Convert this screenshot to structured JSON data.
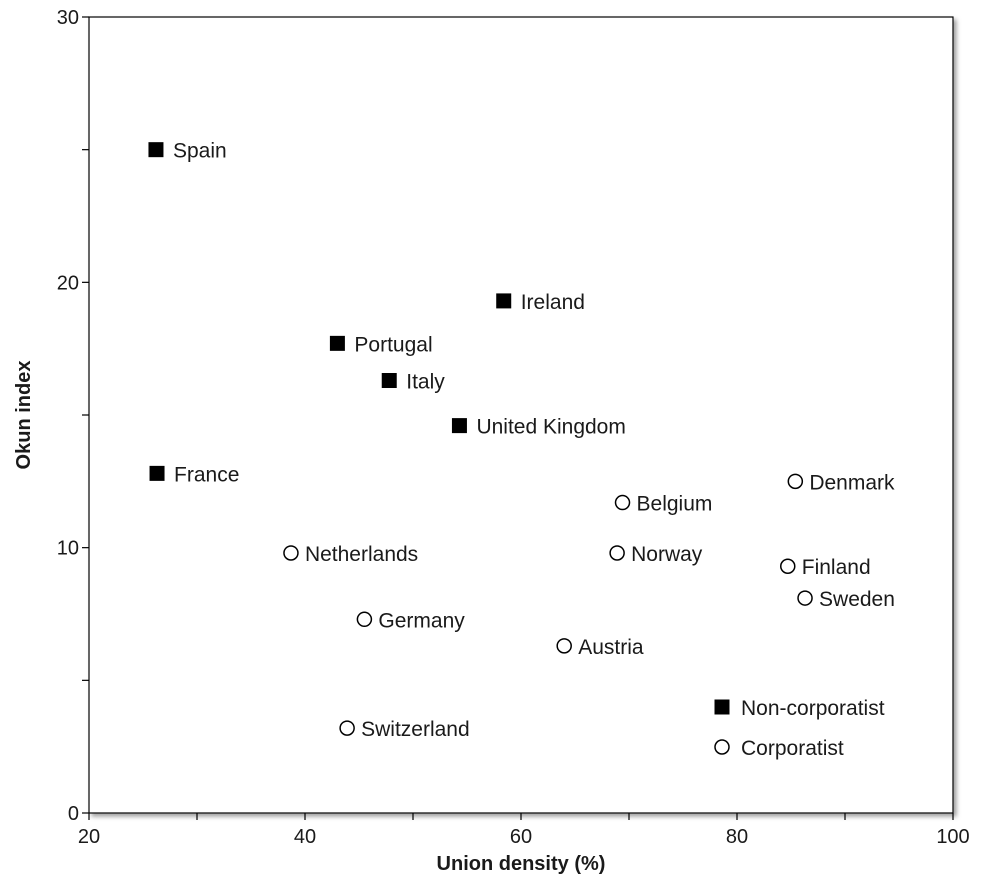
{
  "chart_data": {
    "type": "scatter",
    "title": "",
    "xlabel": "Union density (%)",
    "ylabel": "Okun index",
    "xlim": [
      20,
      100
    ],
    "ylim": [
      0,
      30
    ],
    "x_ticks": [
      20,
      30,
      40,
      50,
      60,
      70,
      80,
      90,
      100
    ],
    "x_tick_labels": [
      "20",
      "",
      "40",
      "",
      "60",
      "",
      "80",
      "",
      "100"
    ],
    "y_ticks": [
      0,
      5,
      10,
      15,
      20,
      25,
      30
    ],
    "y_tick_labels": [
      "0",
      "",
      "10",
      "",
      "20",
      "",
      "30"
    ],
    "grid": false,
    "legend_position": "bottom-right",
    "series": [
      {
        "name": "Non-corporatist",
        "marker": "filled-square",
        "color": "#000000",
        "points": [
          {
            "label": "Spain",
            "x": 26.2,
            "y": 25.0
          },
          {
            "label": "Ireland",
            "x": 58.4,
            "y": 19.3
          },
          {
            "label": "Portugal",
            "x": 43.0,
            "y": 17.7
          },
          {
            "label": "Italy",
            "x": 47.8,
            "y": 16.3
          },
          {
            "label": "United Kingdom",
            "x": 54.3,
            "y": 14.6
          },
          {
            "label": "France",
            "x": 26.3,
            "y": 12.8
          }
        ]
      },
      {
        "name": "Corporatist",
        "marker": "open-circle",
        "color": "#000000",
        "points": [
          {
            "label": "Denmark",
            "x": 85.4,
            "y": 12.5
          },
          {
            "label": "Belgium",
            "x": 69.4,
            "y": 11.7
          },
          {
            "label": "Netherlands",
            "x": 38.7,
            "y": 9.8
          },
          {
            "label": "Norway",
            "x": 68.9,
            "y": 9.8
          },
          {
            "label": "Finland",
            "x": 84.7,
            "y": 9.3
          },
          {
            "label": "Sweden",
            "x": 86.3,
            "y": 8.1
          },
          {
            "label": "Germany",
            "x": 45.5,
            "y": 7.3
          },
          {
            "label": "Austria",
            "x": 64.0,
            "y": 6.3
          },
          {
            "label": "Switzerland",
            "x": 43.9,
            "y": 3.2
          }
        ]
      }
    ]
  }
}
